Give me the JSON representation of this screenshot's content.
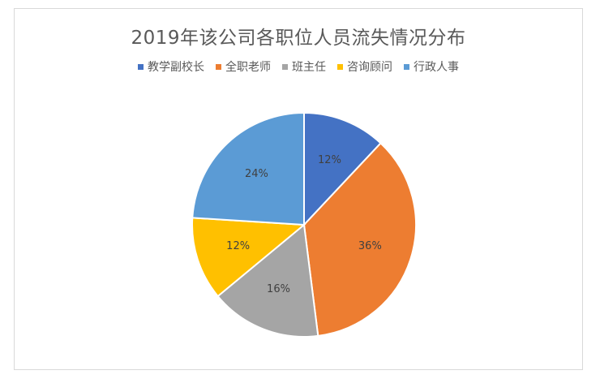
{
  "chart_data": {
    "type": "pie",
    "title": "2019年该公司各职位人员流失情况分布",
    "legend_position": "top",
    "categories": [
      "教学副校长",
      "全职老师",
      "班主任",
      "咨询顾问",
      "行政人事"
    ],
    "values": [
      12,
      36,
      16,
      12,
      24
    ],
    "value_labels": [
      "12%",
      "36%",
      "16%",
      "12%",
      "24%"
    ],
    "colors": [
      "#4472c4",
      "#ed7d31",
      "#a5a5a5",
      "#ffc000",
      "#5b9bd5"
    ]
  }
}
